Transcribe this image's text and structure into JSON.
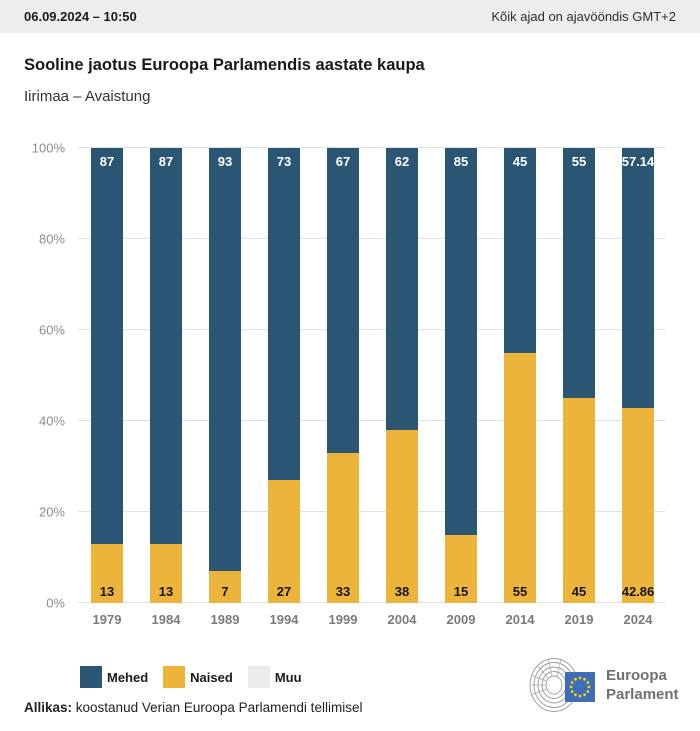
{
  "header": {
    "datetime": "06.09.2024 – 10:50",
    "timezone_note": "Kõik ajad on ajavööndis GMT+2"
  },
  "title": "Sooline jaotus Euroopa Parlamendis aastate kaupa",
  "subtitle": "Iirimaa – Avaistung",
  "chart_data": {
    "type": "bar",
    "stacked": true,
    "categories": [
      "1979",
      "1984",
      "1989",
      "1994",
      "1999",
      "2004",
      "2009",
      "2014",
      "2019",
      "2024"
    ],
    "series": [
      {
        "name": "Mehed",
        "color": "#2a5674",
        "values": [
          87,
          87,
          93,
          73,
          67,
          62,
          85,
          45,
          55,
          57.14
        ]
      },
      {
        "name": "Naised",
        "color": "#edb43c",
        "values": [
          13,
          13,
          7,
          27,
          33,
          38,
          15,
          55,
          45,
          42.86
        ]
      }
    ],
    "legend": [
      {
        "label": "Mehed",
        "color": "#2a5674"
      },
      {
        "label": "Naised",
        "color": "#edb43c"
      },
      {
        "label": "Muu",
        "color": "#ebebeb"
      }
    ],
    "ylim": [
      0,
      100
    ],
    "yticks": [
      "0%",
      "20%",
      "40%",
      "60%",
      "80%",
      "100%"
    ],
    "grid": true,
    "legend_position": "bottom",
    "title": "Sooline jaotus Euroopa Parlamendis aastate kaupa",
    "xlabel": "",
    "ylabel": ""
  },
  "footer": {
    "source_label": "Allikas:",
    "source_text": " koostanud Verian Euroopa Parlamendi tellimisel"
  },
  "logo": {
    "line1": "Euroopa",
    "line2": "Parlament"
  }
}
